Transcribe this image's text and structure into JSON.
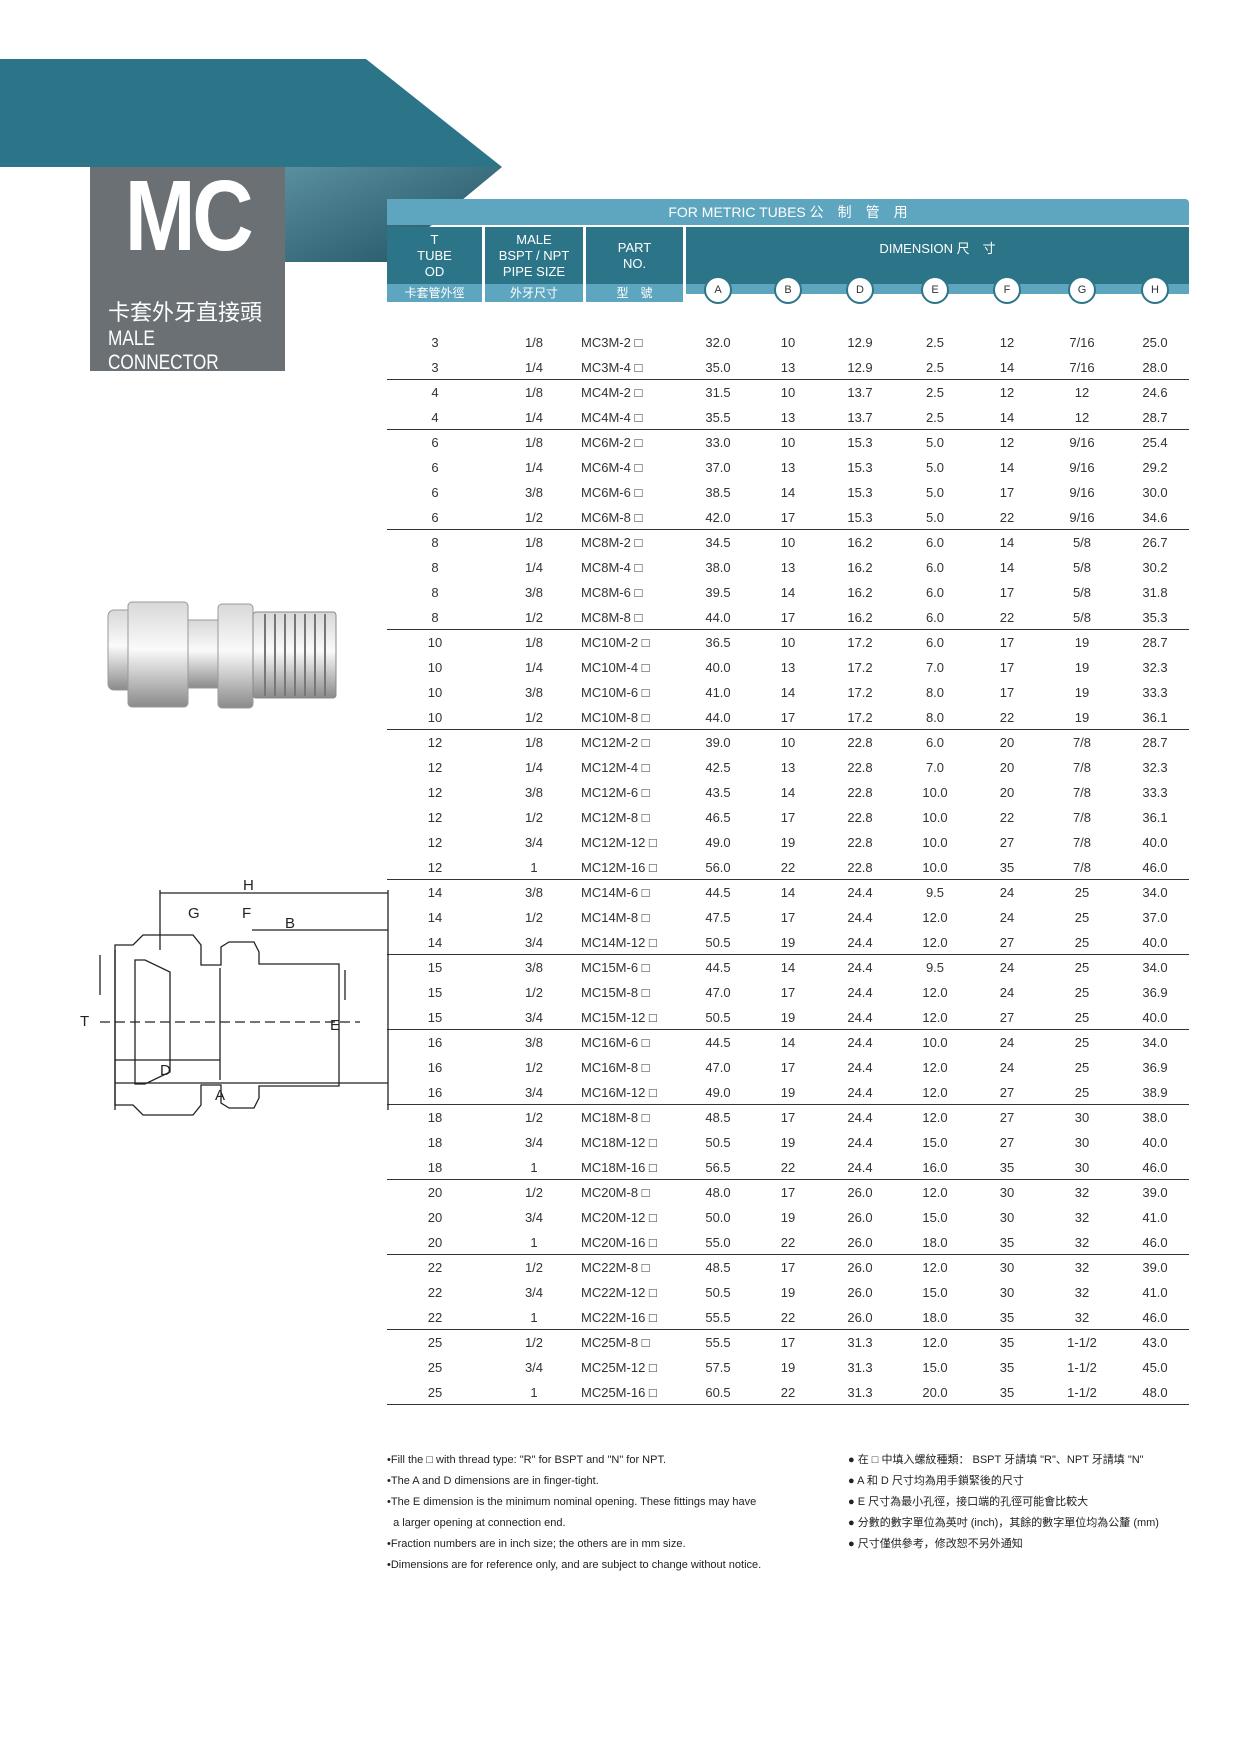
{
  "header": {
    "code": "MC",
    "name_cn": "卡套外牙直接頭",
    "name_en": "MALE CONNECTOR",
    "band_color": "#2c7589",
    "box_color": "#6b7075"
  },
  "table": {
    "title": "FOR METRIC TUBES  公　制　管　用",
    "col_t": {
      "lines": [
        "T",
        "TUBE",
        "OD"
      ],
      "cn": "卡套管外徑"
    },
    "col_male": {
      "lines": [
        "MALE",
        "BSPT / NPT",
        "PIPE SIZE"
      ],
      "cn": "外牙尺寸"
    },
    "col_part": {
      "lines": [
        "PART",
        "NO."
      ],
      "cn": "型　號"
    },
    "dimension": "DIMENSION  尺　寸",
    "dim_cols": [
      "A",
      "B",
      "D",
      "E",
      "F",
      "G",
      "H"
    ],
    "groups": [
      [
        [
          "3",
          "1/8",
          "MC3M-2 □",
          "32.0",
          "10",
          "12.9",
          "2.5",
          "12",
          "7/16",
          "25.0"
        ],
        [
          "3",
          "1/4",
          "MC3M-4 □",
          "35.0",
          "13",
          "12.9",
          "2.5",
          "14",
          "7/16",
          "28.0"
        ]
      ],
      [
        [
          "4",
          "1/8",
          "MC4M-2 □",
          "31.5",
          "10",
          "13.7",
          "2.5",
          "12",
          "12",
          "24.6"
        ],
        [
          "4",
          "1/4",
          "MC4M-4 □",
          "35.5",
          "13",
          "13.7",
          "2.5",
          "14",
          "12",
          "28.7"
        ]
      ],
      [
        [
          "6",
          "1/8",
          "MC6M-2 □",
          "33.0",
          "10",
          "15.3",
          "5.0",
          "12",
          "9/16",
          "25.4"
        ],
        [
          "6",
          "1/4",
          "MC6M-4 □",
          "37.0",
          "13",
          "15.3",
          "5.0",
          "14",
          "9/16",
          "29.2"
        ],
        [
          "6",
          "3/8",
          "MC6M-6 □",
          "38.5",
          "14",
          "15.3",
          "5.0",
          "17",
          "9/16",
          "30.0"
        ],
        [
          "6",
          "1/2",
          "MC6M-8 □",
          "42.0",
          "17",
          "15.3",
          "5.0",
          "22",
          "9/16",
          "34.6"
        ]
      ],
      [
        [
          "8",
          "1/8",
          "MC8M-2 □",
          "34.5",
          "10",
          "16.2",
          "6.0",
          "14",
          "5/8",
          "26.7"
        ],
        [
          "8",
          "1/4",
          "MC8M-4 □",
          "38.0",
          "13",
          "16.2",
          "6.0",
          "14",
          "5/8",
          "30.2"
        ],
        [
          "8",
          "3/8",
          "MC8M-6 □",
          "39.5",
          "14",
          "16.2",
          "6.0",
          "17",
          "5/8",
          "31.8"
        ],
        [
          "8",
          "1/2",
          "MC8M-8 □",
          "44.0",
          "17",
          "16.2",
          "6.0",
          "22",
          "5/8",
          "35.3"
        ]
      ],
      [
        [
          "10",
          "1/8",
          "MC10M-2 □",
          "36.5",
          "10",
          "17.2",
          "6.0",
          "17",
          "19",
          "28.7"
        ],
        [
          "10",
          "1/4",
          "MC10M-4 □",
          "40.0",
          "13",
          "17.2",
          "7.0",
          "17",
          "19",
          "32.3"
        ],
        [
          "10",
          "3/8",
          "MC10M-6 □",
          "41.0",
          "14",
          "17.2",
          "8.0",
          "17",
          "19",
          "33.3"
        ],
        [
          "10",
          "1/2",
          "MC10M-8 □",
          "44.0",
          "17",
          "17.2",
          "8.0",
          "22",
          "19",
          "36.1"
        ]
      ],
      [
        [
          "12",
          "1/8",
          "MC12M-2 □",
          "39.0",
          "10",
          "22.8",
          "6.0",
          "20",
          "7/8",
          "28.7"
        ],
        [
          "12",
          "1/4",
          "MC12M-4 □",
          "42.5",
          "13",
          "22.8",
          "7.0",
          "20",
          "7/8",
          "32.3"
        ],
        [
          "12",
          "3/8",
          "MC12M-6 □",
          "43.5",
          "14",
          "22.8",
          "10.0",
          "20",
          "7/8",
          "33.3"
        ],
        [
          "12",
          "1/2",
          "MC12M-8 □",
          "46.5",
          "17",
          "22.8",
          "10.0",
          "22",
          "7/8",
          "36.1"
        ],
        [
          "12",
          "3/4",
          "MC12M-12 □",
          "49.0",
          "19",
          "22.8",
          "10.0",
          "27",
          "7/8",
          "40.0"
        ],
        [
          "12",
          "1",
          "MC12M-16 □",
          "56.0",
          "22",
          "22.8",
          "10.0",
          "35",
          "7/8",
          "46.0"
        ]
      ],
      [
        [
          "14",
          "3/8",
          "MC14M-6 □",
          "44.5",
          "14",
          "24.4",
          "9.5",
          "24",
          "25",
          "34.0"
        ],
        [
          "14",
          "1/2",
          "MC14M-8 □",
          "47.5",
          "17",
          "24.4",
          "12.0",
          "24",
          "25",
          "37.0"
        ],
        [
          "14",
          "3/4",
          "MC14M-12 □",
          "50.5",
          "19",
          "24.4",
          "12.0",
          "27",
          "25",
          "40.0"
        ]
      ],
      [
        [
          "15",
          "3/8",
          "MC15M-6 □",
          "44.5",
          "14",
          "24.4",
          "9.5",
          "24",
          "25",
          "34.0"
        ],
        [
          "15",
          "1/2",
          "MC15M-8 □",
          "47.0",
          "17",
          "24.4",
          "12.0",
          "24",
          "25",
          "36.9"
        ],
        [
          "15",
          "3/4",
          "MC15M-12 □",
          "50.5",
          "19",
          "24.4",
          "12.0",
          "27",
          "25",
          "40.0"
        ]
      ],
      [
        [
          "16",
          "3/8",
          "MC16M-6 □",
          "44.5",
          "14",
          "24.4",
          "10.0",
          "24",
          "25",
          "34.0"
        ],
        [
          "16",
          "1/2",
          "MC16M-8 □",
          "47.0",
          "17",
          "24.4",
          "12.0",
          "24",
          "25",
          "36.9"
        ],
        [
          "16",
          "3/4",
          "MC16M-12 □",
          "49.0",
          "19",
          "24.4",
          "12.0",
          "27",
          "25",
          "38.9"
        ]
      ],
      [
        [
          "18",
          "1/2",
          "MC18M-8 □",
          "48.5",
          "17",
          "24.4",
          "12.0",
          "27",
          "30",
          "38.0"
        ],
        [
          "18",
          "3/4",
          "MC18M-12 □",
          "50.5",
          "19",
          "24.4",
          "15.0",
          "27",
          "30",
          "40.0"
        ],
        [
          "18",
          "1",
          "MC18M-16 □",
          "56.5",
          "22",
          "24.4",
          "16.0",
          "35",
          "30",
          "46.0"
        ]
      ],
      [
        [
          "20",
          "1/2",
          "MC20M-8 □",
          "48.0",
          "17",
          "26.0",
          "12.0",
          "30",
          "32",
          "39.0"
        ],
        [
          "20",
          "3/4",
          "MC20M-12 □",
          "50.0",
          "19",
          "26.0",
          "15.0",
          "30",
          "32",
          "41.0"
        ],
        [
          "20",
          "1",
          "MC20M-16 □",
          "55.0",
          "22",
          "26.0",
          "18.0",
          "35",
          "32",
          "46.0"
        ]
      ],
      [
        [
          "22",
          "1/2",
          "MC22M-8 □",
          "48.5",
          "17",
          "26.0",
          "12.0",
          "30",
          "32",
          "39.0"
        ],
        [
          "22",
          "3/4",
          "MC22M-12 □",
          "50.5",
          "19",
          "26.0",
          "15.0",
          "30",
          "32",
          "41.0"
        ],
        [
          "22",
          "1",
          "MC22M-16 □",
          "55.5",
          "22",
          "26.0",
          "18.0",
          "35",
          "32",
          "46.0"
        ]
      ],
      [
        [
          "25",
          "1/2",
          "MC25M-8 □",
          "55.5",
          "17",
          "31.3",
          "12.0",
          "35",
          "1-1/2",
          "43.0"
        ],
        [
          "25",
          "3/4",
          "MC25M-12 □",
          "57.5",
          "19",
          "31.3",
          "15.0",
          "35",
          "1-1/2",
          "45.0"
        ],
        [
          "25",
          "1",
          "MC25M-16 □",
          "60.5",
          "22",
          "31.3",
          "20.0",
          "35",
          "1-1/2",
          "48.0"
        ]
      ]
    ]
  },
  "diagram": {
    "labels": [
      "H",
      "G",
      "F",
      "B",
      "T",
      "E",
      "D",
      "A"
    ]
  },
  "notes_en": [
    "•Fill the □ with thread type:  \"R\" for BSPT and \"N\" for NPT.",
    "•The A and D dimensions are in finger-tight.",
    "•The E dimension is the minimum nominal opening. These fittings may have",
    "  a larger opening at connection end.",
    "•Fraction numbers are in inch size;  the others are in mm size.",
    "•Dimensions are for reference only, and are subject to change without notice."
  ],
  "notes_cn": [
    "● 在 □ 中填入螺紋種類： BSPT 牙請填 \"R\"、NPT 牙請填 \"N\"",
    "● A 和 D 尺寸均為用手鎖緊後的尺寸",
    "● E 尺寸為最小孔徑，接口端的孔徑可能會比較大",
    "● 分數的數字單位為英吋 (inch)，其餘的數字單位均為公釐 (mm)",
    "● 尺寸僅供參考，修改恕不另外通知"
  ]
}
